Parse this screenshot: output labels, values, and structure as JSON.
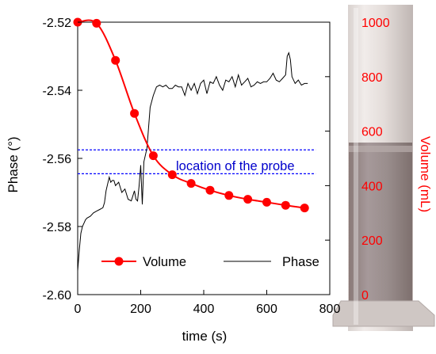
{
  "chart_data": {
    "type": "line",
    "title": "",
    "xlabel": "time (s)",
    "ylabel_left": "Phase (°)",
    "ylabel_right": "Volume (mL)",
    "xlim": [
      0,
      800
    ],
    "ylim_left": [
      -2.6,
      -2.52
    ],
    "ylim_right": [
      0,
      1000
    ],
    "x_ticks": [
      "0",
      "200",
      "400",
      "600",
      "800"
    ],
    "y_ticks_left": [
      "-2.52",
      "-2.54",
      "-2.56",
      "-2.58",
      "-2.60"
    ],
    "y_ticks_right": [
      "1000",
      "800",
      "600",
      "400",
      "200",
      "0"
    ],
    "grid": false,
    "legend": {
      "placement": "bottom",
      "entries": [
        "Volume",
        "Phase"
      ]
    },
    "annotation": {
      "text": "location of  the probe",
      "probe_lines_phase": [
        -2.5575,
        -2.5645
      ],
      "color": "#0000cc"
    },
    "colors": {
      "volume": "#ff0000",
      "phase": "#000000",
      "right_axis": "#ff0000",
      "probe": "#0000ff"
    },
    "series": [
      {
        "name": "Volume",
        "axis": "right",
        "marker": "circle",
        "x": [
          0,
          60,
          120,
          180,
          240,
          300,
          360,
          420,
          480,
          540,
          600,
          660,
          720
        ],
        "values": [
          1000,
          996,
          860,
          665,
          510,
          440,
          408,
          383,
          364,
          350,
          339,
          328,
          318
        ]
      },
      {
        "name": "Phase",
        "axis": "left",
        "x": [
          0,
          5,
          10,
          15,
          20,
          25,
          30,
          40,
          50,
          60,
          70,
          80,
          85,
          90,
          95,
          100,
          105,
          110,
          115,
          120,
          130,
          140,
          150,
          160,
          170,
          175,
          180,
          185,
          190,
          195,
          200,
          205,
          210,
          220,
          230,
          240,
          250,
          260,
          270,
          280,
          290,
          300,
          310,
          320,
          330,
          340,
          350,
          360,
          370,
          380,
          390,
          400,
          410,
          420,
          430,
          440,
          450,
          460,
          470,
          480,
          490,
          500,
          510,
          520,
          530,
          540,
          550,
          560,
          570,
          580,
          590,
          600,
          610,
          620,
          630,
          640,
          650,
          660,
          665,
          670,
          675,
          680,
          690,
          700,
          710,
          720,
          730
        ],
        "values": [
          -2.593,
          -2.587,
          -2.582,
          -2.58,
          -2.579,
          -2.578,
          -2.5775,
          -2.577,
          -2.576,
          -2.5755,
          -2.575,
          -2.5745,
          -2.573,
          -2.5695,
          -2.5675,
          -2.5655,
          -2.567,
          -2.5665,
          -2.5665,
          -2.568,
          -2.567,
          -2.57,
          -2.569,
          -2.572,
          -2.5725,
          -2.571,
          -2.5695,
          -2.572,
          -2.5725,
          -2.568,
          -2.562,
          -2.5735,
          -2.561,
          -2.557,
          -2.545,
          -2.5415,
          -2.539,
          -2.5385,
          -2.539,
          -2.5385,
          -2.5395,
          -2.5395,
          -2.5385,
          -2.539,
          -2.539,
          -2.5415,
          -2.538,
          -2.54,
          -2.538,
          -2.541,
          -2.538,
          -2.537,
          -2.541,
          -2.5375,
          -2.538,
          -2.536,
          -2.5385,
          -2.54,
          -2.537,
          -2.5375,
          -2.536,
          -2.539,
          -2.5355,
          -2.5385,
          -2.5375,
          -2.5365,
          -2.539,
          -2.5385,
          -2.5375,
          -2.538,
          -2.5375,
          -2.5375,
          -2.5365,
          -2.535,
          -2.537,
          -2.5375,
          -2.5365,
          -2.5355,
          -2.53,
          -2.529,
          -2.531,
          -2.536,
          -2.538,
          -2.537,
          -2.5385,
          -2.538,
          -2.538
        ]
      }
    ]
  }
}
